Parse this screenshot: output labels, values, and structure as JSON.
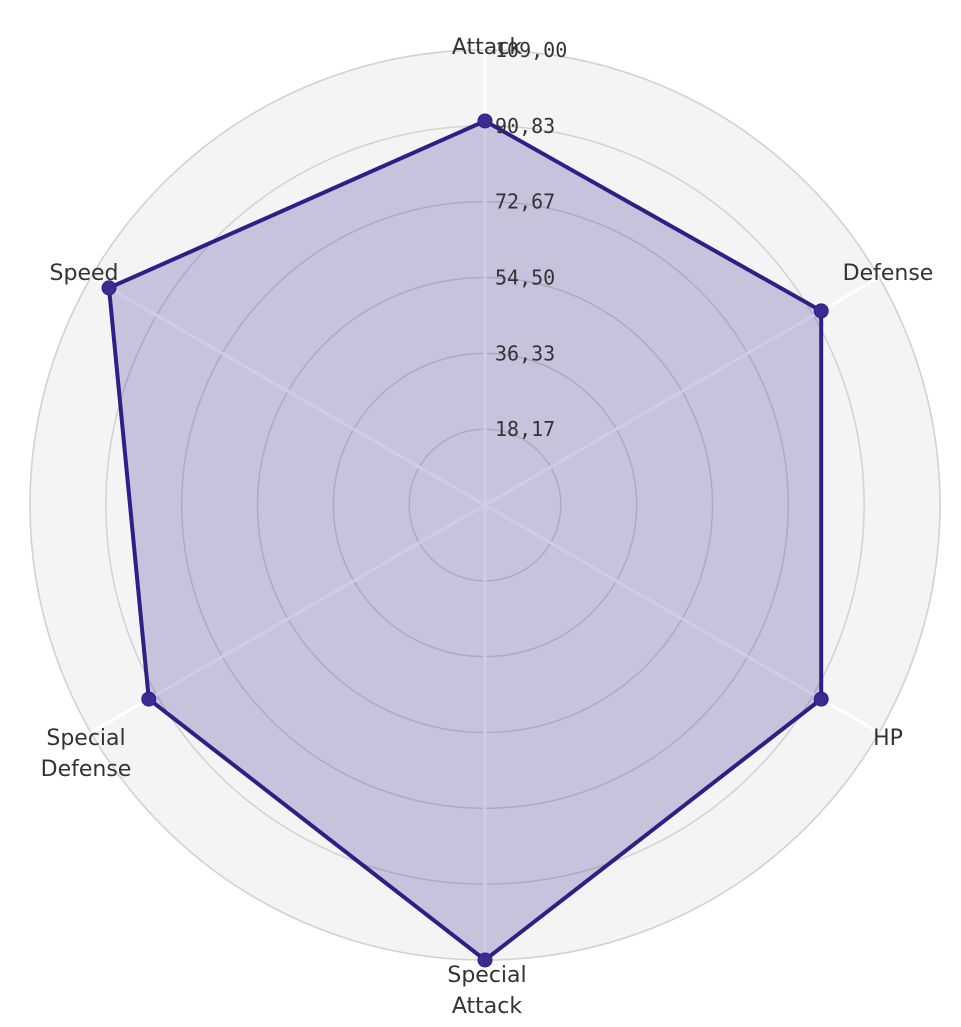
{
  "chart_data": {
    "type": "radar",
    "axes": [
      "Attack",
      "Defense",
      "HP",
      "Special Attack",
      "Special Defense",
      "Speed"
    ],
    "axis_label_lines": [
      [
        "Attack"
      ],
      [
        "Defense"
      ],
      [
        "HP"
      ],
      [
        "Special",
        "Attack"
      ],
      [
        "Special",
        "Defense"
      ],
      [
        "Speed"
      ]
    ],
    "values": [
      92,
      93,
      93,
      109,
      93,
      104
    ],
    "range": [
      0,
      109
    ],
    "ticks": [
      18.17,
      36.33,
      54.5,
      72.67,
      90.83,
      109.0
    ],
    "tick_labels": [
      "18,17",
      "36,33",
      "54,50",
      "72,67",
      "90,83",
      "109,00"
    ],
    "grid": true,
    "legend": "none",
    "colors": {
      "series_line": "#2d1f86",
      "series_fill": "#3d2a92",
      "grid": "#d2d2d2",
      "background": "#f4f4f4"
    }
  }
}
